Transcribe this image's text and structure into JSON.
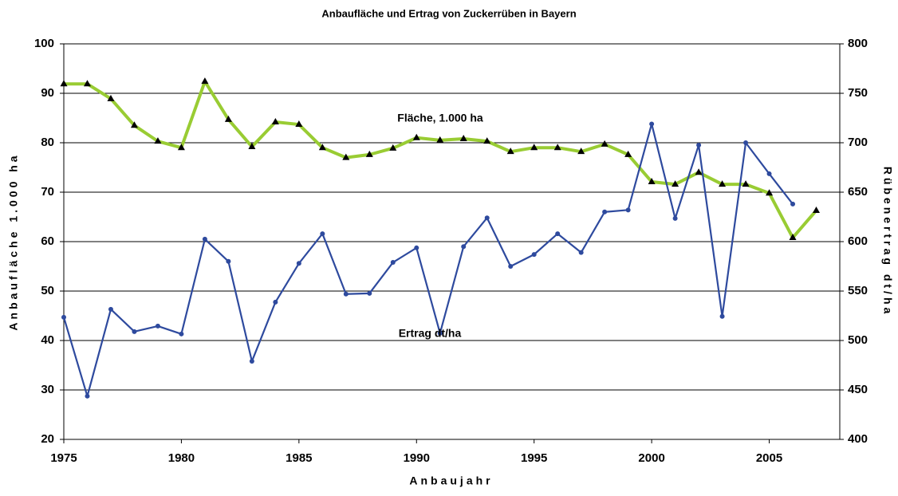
{
  "chart_data": {
    "type": "line",
    "title": "Anbaufläche und Ertrag von Zuckerrüben in Bayern",
    "x_label": "Anbaujahr",
    "y_label": "Anbaufläche 1.000 ha",
    "y2_label": "Rübenertrag dt/ha",
    "x": [
      1975,
      1976,
      1977,
      1978,
      1979,
      1980,
      1981,
      1982,
      1983,
      1984,
      1985,
      1986,
      1987,
      1988,
      1989,
      1990,
      1991,
      1992,
      1993,
      1994,
      1995,
      1996,
      1997,
      1998,
      1999,
      2000,
      2001,
      2002,
      2003,
      2004,
      2005,
      2006,
      2007
    ],
    "xlim": [
      1975,
      2008
    ],
    "xticks": [
      1975,
      1980,
      1985,
      1990,
      1995,
      2000,
      2005
    ],
    "ylim": [
      20,
      100
    ],
    "yticks": [
      20,
      30,
      40,
      50,
      60,
      70,
      80,
      90,
      100
    ],
    "y2lim": [
      400,
      800
    ],
    "y2ticks": [
      400,
      450,
      500,
      550,
      600,
      650,
      700,
      750,
      800
    ],
    "grid": true,
    "series": [
      {
        "name": "Fläche, 1.000 ha",
        "color": "#99cc33",
        "values": [
          91.9,
          91.9,
          88.9,
          83.5,
          80.3,
          79,
          92.4,
          84.7,
          79.2,
          84.2,
          83.7,
          79,
          77,
          77.6,
          78.9,
          81,
          80.5,
          80.8,
          80.3,
          78.2,
          79,
          79,
          78.2,
          79.7,
          77.6,
          72.1,
          71.6,
          74,
          71.6,
          71.6,
          69.8,
          60.8,
          66.3
        ]
      },
      {
        "name": "Ertrag dt/ha",
        "color": "#2e4a9e",
        "axis": "y2",
        "values": [
          523.5,
          443.7,
          531.6,
          509,
          514.6,
          506.6,
          602.5,
          580,
          479,
          538.8,
          578,
          608,
          547,
          547.7,
          579,
          593.7,
          507.4,
          595,
          624,
          575,
          587,
          608,
          589,
          630,
          632,
          719,
          623.5,
          697.6,
          524.4,
          700,
          668.6,
          638,
          null
        ]
      }
    ]
  }
}
